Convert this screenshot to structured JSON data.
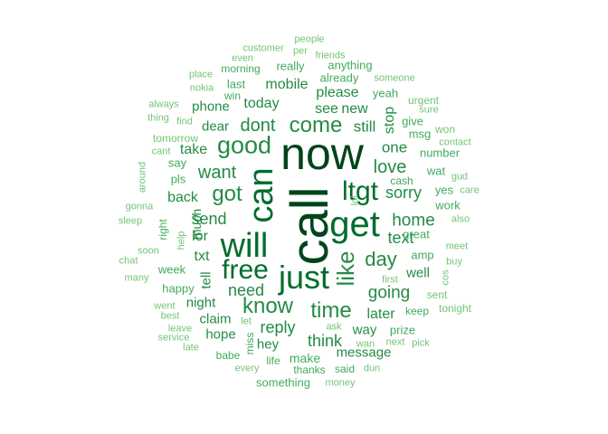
{
  "chart_data": {
    "type": "wordcloud",
    "palette": [
      "#00441b",
      "#006d2c",
      "#238b45",
      "#41ab5d",
      "#74c476"
    ],
    "words": [
      {
        "text": "call",
        "size": 10,
        "vertical": true
      },
      {
        "text": "now",
        "size": 9
      },
      {
        "text": "get",
        "size": 8
      },
      {
        "text": "can",
        "size": 7,
        "vertical": true
      },
      {
        "text": "will",
        "size": 7
      },
      {
        "text": "just",
        "size": 7
      },
      {
        "text": "ltgt",
        "size": 6
      },
      {
        "text": "free",
        "size": 6
      },
      {
        "text": "like",
        "size": 5,
        "vertical": true
      },
      {
        "text": "good",
        "size": 5
      },
      {
        "text": "come",
        "size": 5
      },
      {
        "text": "know",
        "size": 5
      },
      {
        "text": "got",
        "size": 5
      },
      {
        "text": "time",
        "size": 5
      },
      {
        "text": "day",
        "size": 4
      },
      {
        "text": "love",
        "size": 4
      },
      {
        "text": "want",
        "size": 4
      },
      {
        "text": "dont",
        "size": 4
      },
      {
        "text": "going",
        "size": 4
      },
      {
        "text": "home",
        "size": 4
      },
      {
        "text": "sorry",
        "size": 4
      },
      {
        "text": "send",
        "size": 4
      },
      {
        "text": "need",
        "size": 4
      },
      {
        "text": "reply",
        "size": 4
      },
      {
        "text": "text",
        "size": 4
      },
      {
        "text": "one",
        "size": 3
      },
      {
        "text": "still",
        "size": 3
      },
      {
        "text": "today",
        "size": 3
      },
      {
        "text": "mobile",
        "size": 3
      },
      {
        "text": "please",
        "size": 3
      },
      {
        "text": "see",
        "size": 3
      },
      {
        "text": "new",
        "size": 3
      },
      {
        "text": "stop",
        "size": 3,
        "vertical": true
      },
      {
        "text": "later",
        "size": 3
      },
      {
        "text": "think",
        "size": 3
      },
      {
        "text": "back",
        "size": 3
      },
      {
        "text": "take",
        "size": 3
      },
      {
        "text": "dear",
        "size": 3
      },
      {
        "text": "phone",
        "size": 3
      },
      {
        "text": "lor",
        "size": 3
      },
      {
        "text": "txt",
        "size": 3
      },
      {
        "text": "tell",
        "size": 3,
        "vertical": true
      },
      {
        "text": "much",
        "size": 3,
        "vertical": true
      },
      {
        "text": "night",
        "size": 3
      },
      {
        "text": "claim",
        "size": 3
      },
      {
        "text": "hope",
        "size": 3
      },
      {
        "text": "hey",
        "size": 3
      },
      {
        "text": "well",
        "size": 3
      },
      {
        "text": "way",
        "size": 3
      },
      {
        "text": "message",
        "size": 3
      },
      {
        "text": "make",
        "size": 2
      },
      {
        "text": "week",
        "size": 2
      },
      {
        "text": "amp",
        "size": 2
      },
      {
        "text": "great",
        "size": 2
      },
      {
        "text": "work",
        "size": 2
      },
      {
        "text": "number",
        "size": 2
      },
      {
        "text": "give",
        "size": 2
      },
      {
        "text": "msg",
        "size": 2
      },
      {
        "text": "yes",
        "size": 2
      },
      {
        "text": "cash",
        "size": 2
      },
      {
        "text": "wat",
        "size": 2
      },
      {
        "text": "yeah",
        "size": 2
      },
      {
        "text": "already",
        "size": 2
      },
      {
        "text": "really",
        "size": 2
      },
      {
        "text": "anything",
        "size": 2
      },
      {
        "text": "last",
        "size": 2
      },
      {
        "text": "win",
        "size": 2
      },
      {
        "text": "morning",
        "size": 2
      },
      {
        "text": "happy",
        "size": 2
      },
      {
        "text": "pls",
        "size": 2
      },
      {
        "text": "say",
        "size": 2
      },
      {
        "text": "prize",
        "size": 2
      },
      {
        "text": "keep",
        "size": 2
      },
      {
        "text": "miss",
        "size": 2,
        "vertical": true
      },
      {
        "text": "babe",
        "size": 2
      },
      {
        "text": "life",
        "size": 2
      },
      {
        "text": "thanks",
        "size": 2
      },
      {
        "text": "said",
        "size": 2
      },
      {
        "text": "something",
        "size": 2
      },
      {
        "text": "right",
        "size": 2,
        "vertical": true
      },
      {
        "text": "tomorrow",
        "size": 1
      },
      {
        "text": "someone",
        "size": 1
      },
      {
        "text": "urgent",
        "size": 1
      },
      {
        "text": "sure",
        "size": 1
      },
      {
        "text": "won",
        "size": 1
      },
      {
        "text": "contact",
        "size": 1
      },
      {
        "text": "gud",
        "size": 1
      },
      {
        "text": "care",
        "size": 1
      },
      {
        "text": "also",
        "size": 1
      },
      {
        "text": "meet",
        "size": 1
      },
      {
        "text": "buy",
        "size": 1
      },
      {
        "text": "cos",
        "size": 1,
        "vertical": true
      },
      {
        "text": "sent",
        "size": 1
      },
      {
        "text": "tonight",
        "size": 1
      },
      {
        "text": "first",
        "size": 1
      },
      {
        "text": "pick",
        "size": 1
      },
      {
        "text": "next",
        "size": 1
      },
      {
        "text": "wan",
        "size": 1
      },
      {
        "text": "ask",
        "size": 1
      },
      {
        "text": "dun",
        "size": 1
      },
      {
        "text": "money",
        "size": 1
      },
      {
        "text": "every",
        "size": 1
      },
      {
        "text": "let",
        "size": 1
      },
      {
        "text": "late",
        "size": 1
      },
      {
        "text": "service",
        "size": 1
      },
      {
        "text": "leave",
        "size": 1
      },
      {
        "text": "best",
        "size": 1
      },
      {
        "text": "went",
        "size": 1
      },
      {
        "text": "many",
        "size": 1
      },
      {
        "text": "chat",
        "size": 1
      },
      {
        "text": "soon",
        "size": 1
      },
      {
        "text": "help",
        "size": 1,
        "vertical": true
      },
      {
        "text": "sleep",
        "size": 1
      },
      {
        "text": "gonna",
        "size": 1
      },
      {
        "text": "around",
        "size": 1,
        "vertical": true
      },
      {
        "text": "cant",
        "size": 1
      },
      {
        "text": "thing",
        "size": 1
      },
      {
        "text": "always",
        "size": 1
      },
      {
        "text": "find",
        "size": 1
      },
      {
        "text": "nokia",
        "size": 1
      },
      {
        "text": "place",
        "size": 1
      },
      {
        "text": "even",
        "size": 1
      },
      {
        "text": "customer",
        "size": 1
      },
      {
        "text": "per",
        "size": 1
      },
      {
        "text": "people",
        "size": 1
      },
      {
        "text": "friends",
        "size": 1
      },
      {
        "text": "lol",
        "size": 1,
        "vertical": true
      }
    ]
  }
}
